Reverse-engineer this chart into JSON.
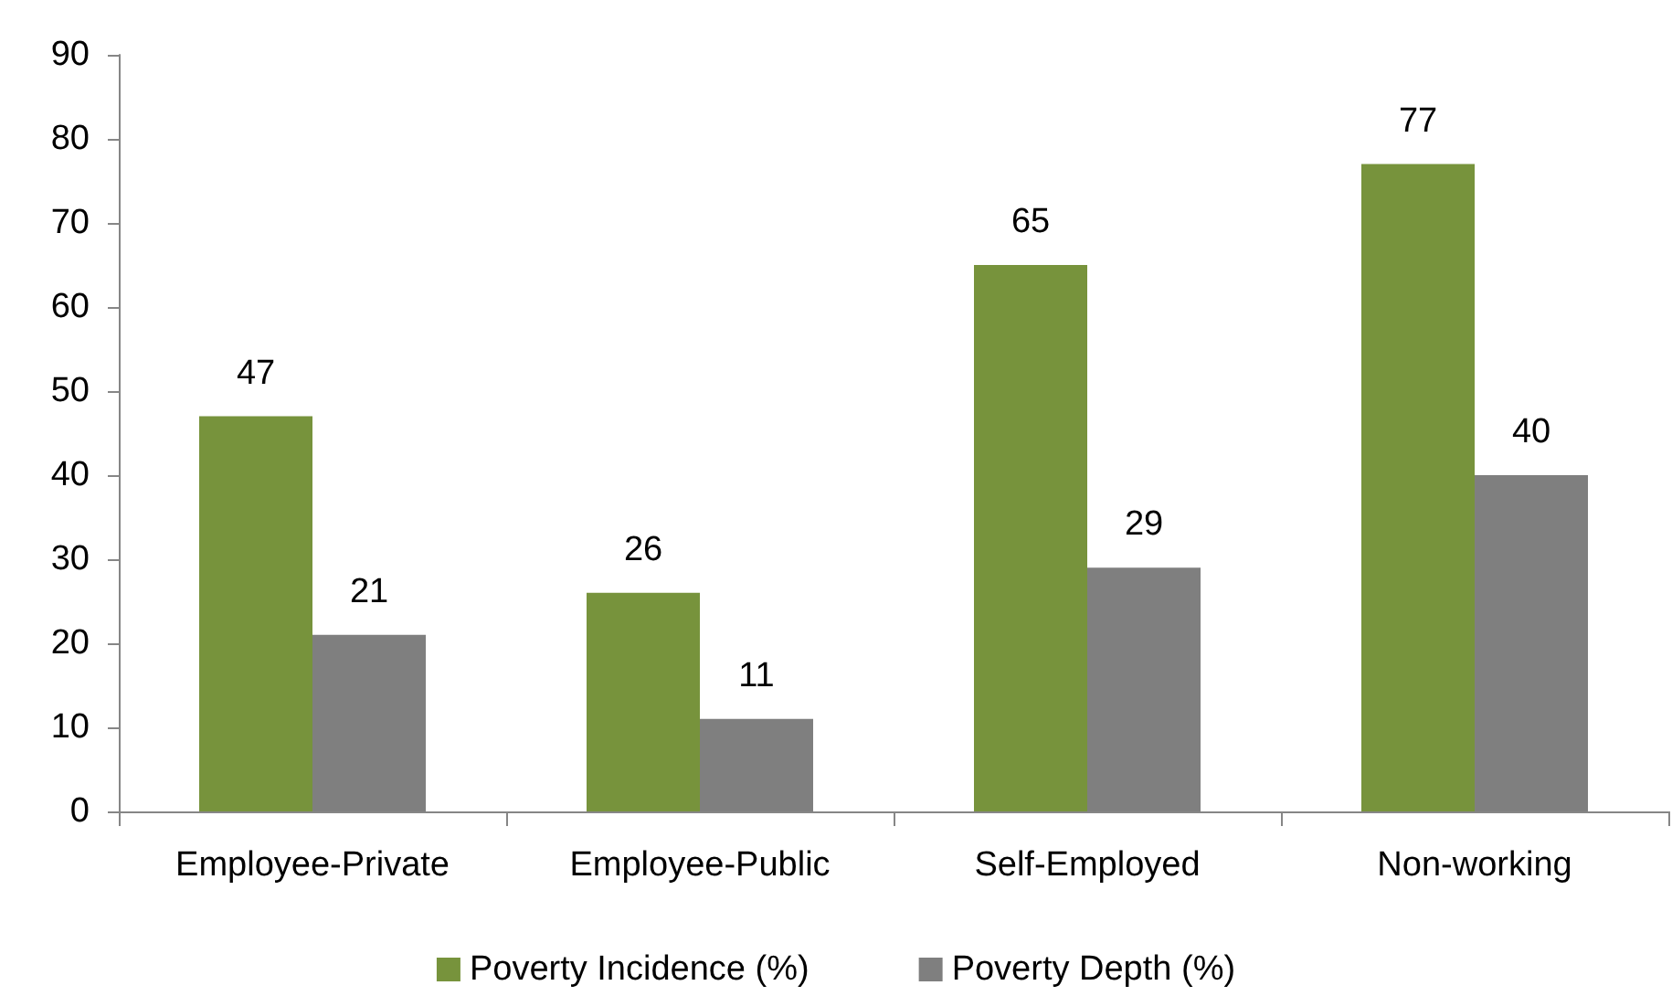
{
  "chart_data": {
    "type": "bar",
    "categories": [
      "Employee-Private",
      "Employee-Public",
      "Self-Employed",
      "Non-working"
    ],
    "series": [
      {
        "name": "Poverty Incidence (%)",
        "color": "#77933c",
        "values": [
          47,
          26,
          65,
          77
        ]
      },
      {
        "name": "Poverty Depth (%)",
        "color": "#7f7f7f",
        "values": [
          21,
          11,
          29,
          40
        ]
      }
    ],
    "ylim": [
      0,
      90
    ],
    "yticks": [
      0,
      10,
      20,
      30,
      40,
      50,
      60,
      70,
      80,
      90
    ],
    "grid": false,
    "legend": "bottom",
    "data_labels": true
  }
}
